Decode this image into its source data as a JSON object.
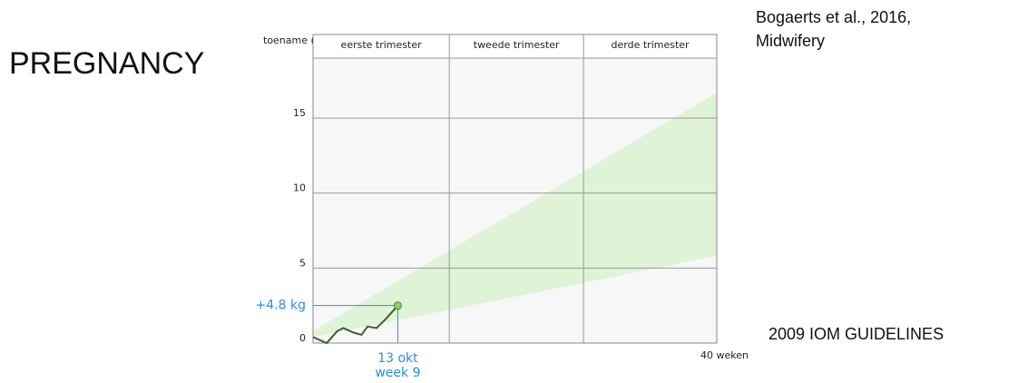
{
  "title": "PREGNANCY",
  "citation": [
    "Bogaerts et al., 2016,",
    "Midwifery"
  ],
  "note": "2009 IOM GUIDELINES",
  "chart_data": {
    "type": "line",
    "ylabel": "toename (kg)",
    "xlabel": "40 weken",
    "xlim": [
      0,
      40
    ],
    "ylim": [
      0,
      19
    ],
    "yticks": [
      0,
      5,
      10,
      15
    ],
    "grid": true,
    "trimesters": [
      {
        "label": "eerste trimester",
        "start": 0,
        "end": 13.5
      },
      {
        "label": "tweede trimester",
        "start": 13.5,
        "end": 26.8
      },
      {
        "label": "derde trimester",
        "start": 26.8,
        "end": 40
      }
    ],
    "band": {
      "x": [
        0,
        40
      ],
      "lower": [
        0.4,
        5.8
      ],
      "upper": [
        0.8,
        16.7
      ],
      "color": "#dff3d6"
    },
    "series": [
      {
        "color": "#3f5f2f",
        "x": [
          0,
          1.35,
          2.4,
          3.0,
          4.0,
          4.8,
          5.4,
          6.3,
          7.2,
          8.4
        ],
        "values": [
          0.4,
          0,
          0.8,
          1.0,
          0.7,
          0.55,
          1.1,
          1.0,
          1.6,
          2.5
        ]
      }
    ],
    "annotation": {
      "value_label": "+4.8 kg",
      "date": "13 okt",
      "week": "week 9",
      "color": "#2a8ee0"
    }
  }
}
